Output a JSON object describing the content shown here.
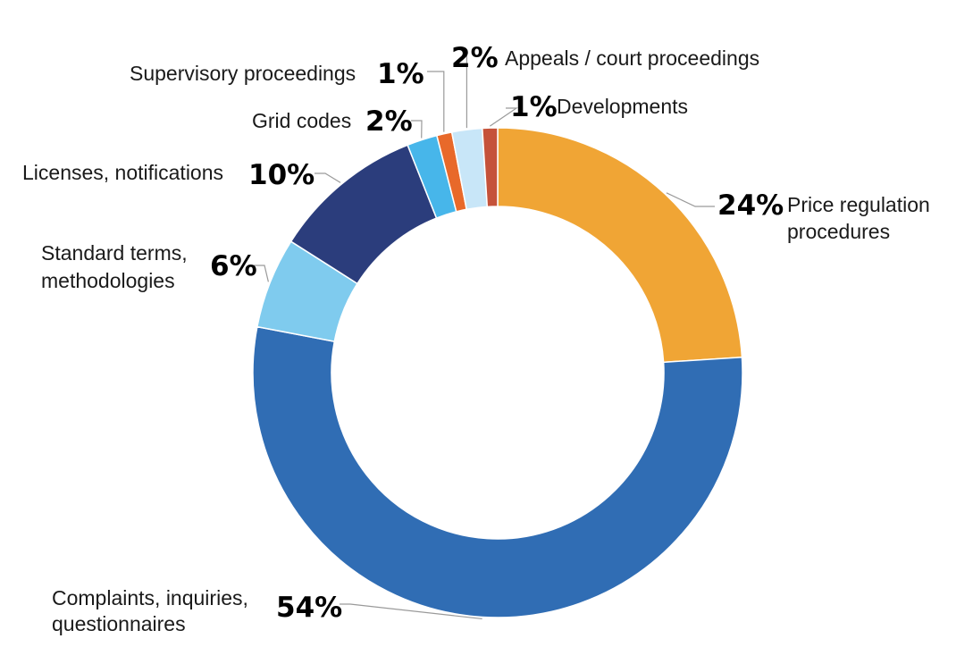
{
  "chart_data": {
    "type": "pie",
    "variant": "donut",
    "title": "",
    "legend": "none",
    "slices": [
      {
        "label": [
          "Price regulation",
          "procedures"
        ],
        "value_text": "24%",
        "value": 24,
        "color": "#F0A535"
      },
      {
        "label": [
          "Complaints, inquiries,",
          "questionnaires"
        ],
        "value_text": "54%",
        "value": 54,
        "color": "#306DB4"
      },
      {
        "label": [
          "Standard terms,",
          "methodologies"
        ],
        "value_text": "6%",
        "value": 6,
        "color": "#7FCBEE"
      },
      {
        "label": [
          "Licenses, notifications"
        ],
        "value_text": "10%",
        "value": 10,
        "color": "#2B3D7C"
      },
      {
        "label": [
          "Grid codes"
        ],
        "value_text": "2%",
        "value": 2,
        "color": "#47B6EA"
      },
      {
        "label": [
          "Supervisory proceedings"
        ],
        "value_text": "1%",
        "value": 1,
        "color": "#E8692A"
      },
      {
        "label": [
          "Appeals / court proceedings"
        ],
        "value_text": "2%",
        "value": 2,
        "color": "#C8E6F8"
      },
      {
        "label": [
          "Developments"
        ],
        "value_text": "1%",
        "value": 1,
        "color": "#C5523A"
      }
    ]
  }
}
